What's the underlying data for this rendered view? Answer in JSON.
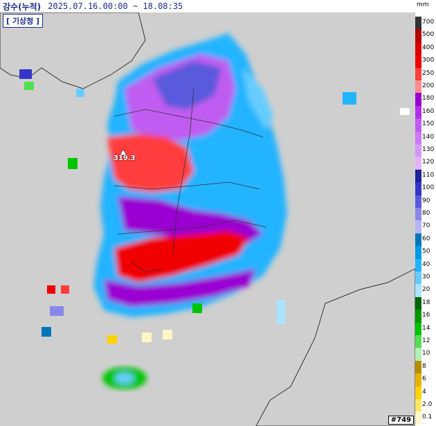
{
  "header": {
    "title": "강수(누적)",
    "time_range": "2025.07.16.00:00 ~ 18.08:35"
  },
  "map": {
    "agency_badge": "[ 기상청 ]",
    "max_label": "319.3",
    "frame_label": "#749"
  },
  "legend": {
    "unit": "mm",
    "items": [
      {
        "label": "700",
        "color": "#333333"
      },
      {
        "label": "500",
        "color": "#b40000"
      },
      {
        "label": "400",
        "color": "#dc0000"
      },
      {
        "label": "300",
        "color": "#f00000"
      },
      {
        "label": "250",
        "color": "#ff3c3c"
      },
      {
        "label": "200",
        "color": "#ff8c8c"
      },
      {
        "label": "180",
        "color": "#9a00d1"
      },
      {
        "label": "160",
        "color": "#b12ee6"
      },
      {
        "label": "150",
        "color": "#c15cf0"
      },
      {
        "label": "140",
        "color": "#cc77f4"
      },
      {
        "label": "130",
        "color": "#d696f6"
      },
      {
        "label": "120",
        "color": "#e2b4f9"
      },
      {
        "label": "110",
        "color": "#20209a"
      },
      {
        "label": "100",
        "color": "#3434c8"
      },
      {
        "label": "90",
        "color": "#5a5adc"
      },
      {
        "label": "80",
        "color": "#8888ea"
      },
      {
        "label": "70",
        "color": "#b6b6f2"
      },
      {
        "label": "60",
        "color": "#0077bb"
      },
      {
        "label": "50",
        "color": "#0099e6"
      },
      {
        "label": "40",
        "color": "#22b4ff"
      },
      {
        "label": "30",
        "color": "#66ccff"
      },
      {
        "label": "20",
        "color": "#a8e3ff"
      },
      {
        "label": "18",
        "color": "#006600"
      },
      {
        "label": "16",
        "color": "#009900"
      },
      {
        "label": "14",
        "color": "#00c600"
      },
      {
        "label": "12",
        "color": "#52e052"
      },
      {
        "label": "10",
        "color": "#b4f0b4"
      },
      {
        "label": "8",
        "color": "#b48c00"
      },
      {
        "label": "6",
        "color": "#e6b400"
      },
      {
        "label": "4",
        "color": "#ffd200"
      },
      {
        "label": "2.0",
        "color": "#ffe766"
      },
      {
        "label": "0.1",
        "color": "#fff6c8"
      }
    ]
  }
}
